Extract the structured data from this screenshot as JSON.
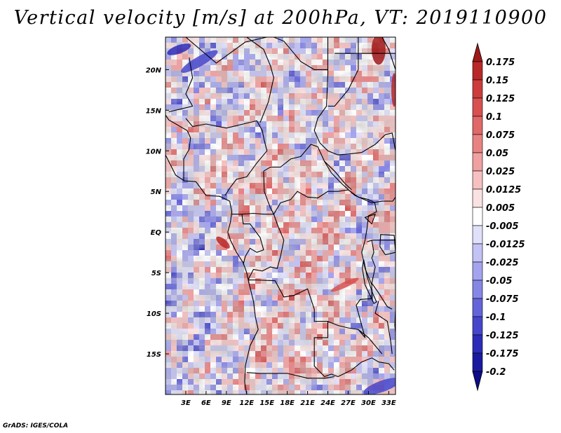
{
  "title": "Vertical velocity [m/s] at 200hPa, VT: 2019110900",
  "credit": "GrADS: IGES/COLA",
  "chart_data": {
    "type": "heatmap",
    "title": "Vertical velocity [m/s] at 200hPa, VT: 2019110900",
    "variable": "Vertical velocity",
    "units": "m/s",
    "level": "200hPa",
    "valid_time": "2019110900",
    "lon_range": [
      0,
      34
    ],
    "lat_range": [
      -20,
      24
    ],
    "x_ticks": [
      {
        "lon": 3,
        "label": "3E"
      },
      {
        "lon": 6,
        "label": "6E"
      },
      {
        "lon": 9,
        "label": "9E"
      },
      {
        "lon": 12,
        "label": "12E"
      },
      {
        "lon": 15,
        "label": "15E"
      },
      {
        "lon": 18,
        "label": "18E"
      },
      {
        "lon": 21,
        "label": "21E"
      },
      {
        "lon": 24,
        "label": "24E"
      },
      {
        "lon": 27,
        "label": "27E"
      },
      {
        "lon": 30,
        "label": "30E"
      },
      {
        "lon": 33,
        "label": "33E"
      }
    ],
    "y_ticks": [
      {
        "lat": 20,
        "label": "20N"
      },
      {
        "lat": 15,
        "label": "15N"
      },
      {
        "lat": 10,
        "label": "10N"
      },
      {
        "lat": 5,
        "label": "5N"
      },
      {
        "lat": 0,
        "label": "EQ"
      },
      {
        "lat": -5,
        "label": "5S"
      },
      {
        "lat": -10,
        "label": "10S"
      },
      {
        "lat": -15,
        "label": "15S"
      }
    ],
    "colorbar": {
      "labels": [
        "0.175",
        "0.15",
        "0.125",
        "0.1",
        "0.075",
        "0.05",
        "0.025",
        "0.0125",
        "0.005",
        "-0.005",
        "-0.0125",
        "-0.025",
        "-0.05",
        "-0.075",
        "-0.1",
        "-0.125",
        "-0.175",
        "-0.2"
      ],
      "colors": [
        "#a01818",
        "#b82828",
        "#cc3c3c",
        "#d85050",
        "#e06868",
        "#e88282",
        "#f0a0a0",
        "#f6c0c0",
        "#fbe2e2",
        "#ffffff",
        "#e0e0fa",
        "#c2c2f4",
        "#a4a4ee",
        "#8686e6",
        "#6464da",
        "#4646cc",
        "#2c2cb8",
        "#1a1aa0",
        "#0c0c88"
      ]
    }
  }
}
